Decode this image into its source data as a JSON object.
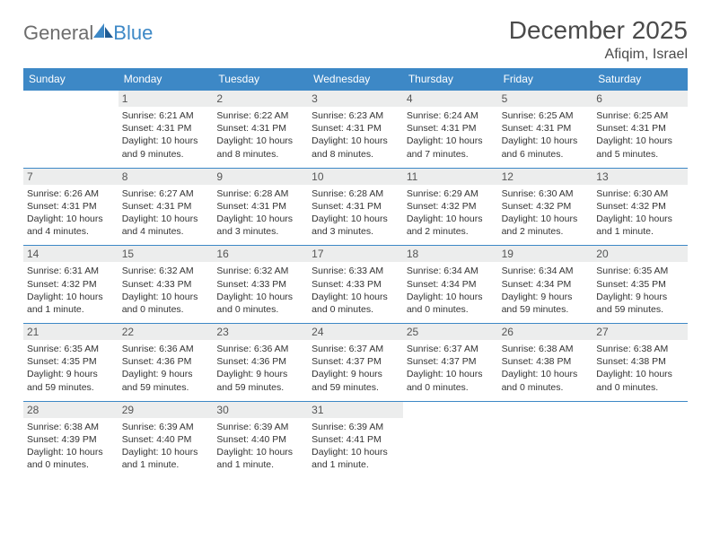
{
  "logo": {
    "general": "General",
    "blue": "Blue"
  },
  "title": "December 2025",
  "subtitle": "Afiqim, Israel",
  "colors": {
    "header_bg": "#3d88c6",
    "header_text": "#ffffff",
    "daynum_bg": "#eceded",
    "border": "#3d88c6",
    "title_color": "#4a4a4a",
    "logo_gray": "#6d6d6d",
    "logo_blue": "#3d88c6"
  },
  "day_names": [
    "Sunday",
    "Monday",
    "Tuesday",
    "Wednesday",
    "Thursday",
    "Friday",
    "Saturday"
  ],
  "weeks": [
    [
      null,
      {
        "n": "1",
        "sr": "Sunrise: 6:21 AM",
        "ss": "Sunset: 4:31 PM",
        "d1": "Daylight: 10 hours",
        "d2": "and 9 minutes."
      },
      {
        "n": "2",
        "sr": "Sunrise: 6:22 AM",
        "ss": "Sunset: 4:31 PM",
        "d1": "Daylight: 10 hours",
        "d2": "and 8 minutes."
      },
      {
        "n": "3",
        "sr": "Sunrise: 6:23 AM",
        "ss": "Sunset: 4:31 PM",
        "d1": "Daylight: 10 hours",
        "d2": "and 8 minutes."
      },
      {
        "n": "4",
        "sr": "Sunrise: 6:24 AM",
        "ss": "Sunset: 4:31 PM",
        "d1": "Daylight: 10 hours",
        "d2": "and 7 minutes."
      },
      {
        "n": "5",
        "sr": "Sunrise: 6:25 AM",
        "ss": "Sunset: 4:31 PM",
        "d1": "Daylight: 10 hours",
        "d2": "and 6 minutes."
      },
      {
        "n": "6",
        "sr": "Sunrise: 6:25 AM",
        "ss": "Sunset: 4:31 PM",
        "d1": "Daylight: 10 hours",
        "d2": "and 5 minutes."
      }
    ],
    [
      {
        "n": "7",
        "sr": "Sunrise: 6:26 AM",
        "ss": "Sunset: 4:31 PM",
        "d1": "Daylight: 10 hours",
        "d2": "and 4 minutes."
      },
      {
        "n": "8",
        "sr": "Sunrise: 6:27 AM",
        "ss": "Sunset: 4:31 PM",
        "d1": "Daylight: 10 hours",
        "d2": "and 4 minutes."
      },
      {
        "n": "9",
        "sr": "Sunrise: 6:28 AM",
        "ss": "Sunset: 4:31 PM",
        "d1": "Daylight: 10 hours",
        "d2": "and 3 minutes."
      },
      {
        "n": "10",
        "sr": "Sunrise: 6:28 AM",
        "ss": "Sunset: 4:31 PM",
        "d1": "Daylight: 10 hours",
        "d2": "and 3 minutes."
      },
      {
        "n": "11",
        "sr": "Sunrise: 6:29 AM",
        "ss": "Sunset: 4:32 PM",
        "d1": "Daylight: 10 hours",
        "d2": "and 2 minutes."
      },
      {
        "n": "12",
        "sr": "Sunrise: 6:30 AM",
        "ss": "Sunset: 4:32 PM",
        "d1": "Daylight: 10 hours",
        "d2": "and 2 minutes."
      },
      {
        "n": "13",
        "sr": "Sunrise: 6:30 AM",
        "ss": "Sunset: 4:32 PM",
        "d1": "Daylight: 10 hours",
        "d2": "and 1 minute."
      }
    ],
    [
      {
        "n": "14",
        "sr": "Sunrise: 6:31 AM",
        "ss": "Sunset: 4:32 PM",
        "d1": "Daylight: 10 hours",
        "d2": "and 1 minute."
      },
      {
        "n": "15",
        "sr": "Sunrise: 6:32 AM",
        "ss": "Sunset: 4:33 PM",
        "d1": "Daylight: 10 hours",
        "d2": "and 0 minutes."
      },
      {
        "n": "16",
        "sr": "Sunrise: 6:32 AM",
        "ss": "Sunset: 4:33 PM",
        "d1": "Daylight: 10 hours",
        "d2": "and 0 minutes."
      },
      {
        "n": "17",
        "sr": "Sunrise: 6:33 AM",
        "ss": "Sunset: 4:33 PM",
        "d1": "Daylight: 10 hours",
        "d2": "and 0 minutes."
      },
      {
        "n": "18",
        "sr": "Sunrise: 6:34 AM",
        "ss": "Sunset: 4:34 PM",
        "d1": "Daylight: 10 hours",
        "d2": "and 0 minutes."
      },
      {
        "n": "19",
        "sr": "Sunrise: 6:34 AM",
        "ss": "Sunset: 4:34 PM",
        "d1": "Daylight: 9 hours",
        "d2": "and 59 minutes."
      },
      {
        "n": "20",
        "sr": "Sunrise: 6:35 AM",
        "ss": "Sunset: 4:35 PM",
        "d1": "Daylight: 9 hours",
        "d2": "and 59 minutes."
      }
    ],
    [
      {
        "n": "21",
        "sr": "Sunrise: 6:35 AM",
        "ss": "Sunset: 4:35 PM",
        "d1": "Daylight: 9 hours",
        "d2": "and 59 minutes."
      },
      {
        "n": "22",
        "sr": "Sunrise: 6:36 AM",
        "ss": "Sunset: 4:36 PM",
        "d1": "Daylight: 9 hours",
        "d2": "and 59 minutes."
      },
      {
        "n": "23",
        "sr": "Sunrise: 6:36 AM",
        "ss": "Sunset: 4:36 PM",
        "d1": "Daylight: 9 hours",
        "d2": "and 59 minutes."
      },
      {
        "n": "24",
        "sr": "Sunrise: 6:37 AM",
        "ss": "Sunset: 4:37 PM",
        "d1": "Daylight: 9 hours",
        "d2": "and 59 minutes."
      },
      {
        "n": "25",
        "sr": "Sunrise: 6:37 AM",
        "ss": "Sunset: 4:37 PM",
        "d1": "Daylight: 10 hours",
        "d2": "and 0 minutes."
      },
      {
        "n": "26",
        "sr": "Sunrise: 6:38 AM",
        "ss": "Sunset: 4:38 PM",
        "d1": "Daylight: 10 hours",
        "d2": "and 0 minutes."
      },
      {
        "n": "27",
        "sr": "Sunrise: 6:38 AM",
        "ss": "Sunset: 4:38 PM",
        "d1": "Daylight: 10 hours",
        "d2": "and 0 minutes."
      }
    ],
    [
      {
        "n": "28",
        "sr": "Sunrise: 6:38 AM",
        "ss": "Sunset: 4:39 PM",
        "d1": "Daylight: 10 hours",
        "d2": "and 0 minutes."
      },
      {
        "n": "29",
        "sr": "Sunrise: 6:39 AM",
        "ss": "Sunset: 4:40 PM",
        "d1": "Daylight: 10 hours",
        "d2": "and 1 minute."
      },
      {
        "n": "30",
        "sr": "Sunrise: 6:39 AM",
        "ss": "Sunset: 4:40 PM",
        "d1": "Daylight: 10 hours",
        "d2": "and 1 minute."
      },
      {
        "n": "31",
        "sr": "Sunrise: 6:39 AM",
        "ss": "Sunset: 4:41 PM",
        "d1": "Daylight: 10 hours",
        "d2": "and 1 minute."
      },
      null,
      null,
      null
    ]
  ]
}
